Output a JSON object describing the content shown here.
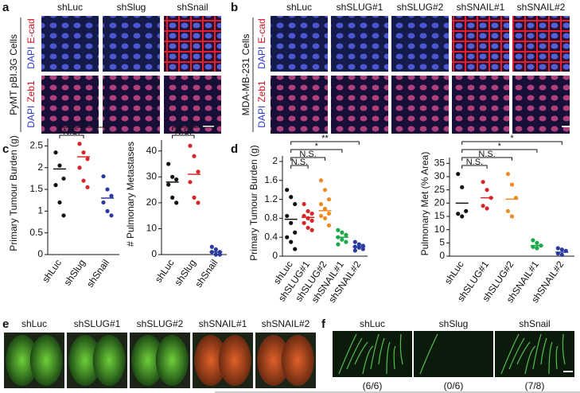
{
  "panel_labels": [
    "a",
    "b",
    "c",
    "d",
    "e",
    "f"
  ],
  "panel_a": {
    "columns": [
      "shLuc",
      "shSlug",
      "shSnail"
    ],
    "cell_line": "PyMT pBI.3G Cells",
    "rows": [
      {
        "stain": "DAPI",
        "marker": "E-cad"
      },
      {
        "stain": "DAPI",
        "marker": "Zeb1"
      }
    ]
  },
  "panel_b": {
    "columns": [
      "shLuc",
      "shSLUG#1",
      "shSLUG#2",
      "shSNAIL#1",
      "shSNAIL#2"
    ],
    "cell_line": "MDA-MB-231 Cells",
    "rows": [
      {
        "stain": "DAPI",
        "marker": "E-cad"
      },
      {
        "stain": "DAPI",
        "marker": "Zeb1"
      }
    ]
  },
  "chart_data": [
    {
      "type": "dot",
      "ylabel": "Primary Tumour Burden (g)",
      "categories": [
        "shLuc",
        "shSlug",
        "shSnail"
      ],
      "colors": [
        "#111111",
        "#d62728",
        "#2a3aa0"
      ],
      "values": [
        [
          2.35,
          2.05,
          1.75,
          1.6,
          1.2,
          0.9
        ],
        [
          2.55,
          2.35,
          2.2,
          2.0,
          1.7,
          1.55
        ],
        [
          1.8,
          1.5,
          1.35,
          1.2,
          1.0,
          0.9
        ]
      ],
      "means": [
        1.97,
        2.25,
        1.3
      ],
      "ylim": [
        0,
        2.6
      ],
      "yticks": [
        0,
        0.5,
        1,
        1.5,
        2,
        2.5
      ],
      "annotations": [
        "N.S.",
        "*"
      ]
    },
    {
      "type": "dot",
      "ylabel": "# Pulmonary Metastases",
      "categories": [
        "shLuc",
        "shSlug",
        "shSnail"
      ],
      "colors": [
        "#111111",
        "#d62728",
        "#2a3aa0"
      ],
      "values": [
        [
          35,
          30,
          29,
          27,
          22,
          20
        ],
        [
          42,
          38,
          32,
          28,
          22,
          20
        ],
        [
          3,
          2,
          1,
          1,
          0,
          0
        ]
      ],
      "means": [
        28,
        31,
        1
      ],
      "ylim": [
        0,
        43
      ],
      "yticks": [
        0,
        10,
        20,
        30,
        40
      ],
      "annotations": [
        "N.S.",
        "**"
      ]
    },
    {
      "type": "dot",
      "ylabel": "Primary Tumour Burden (g)",
      "categories": [
        "shLuc",
        "shSLUG#1",
        "shSLUG#2",
        "shSNAIL#1",
        "shSNAIL#2"
      ],
      "colors": [
        "#111111",
        "#d62728",
        "#f08a24",
        "#1aa84a",
        "#2a3aa0"
      ],
      "values": [
        [
          1.4,
          1.25,
          1.1,
          0.85,
          0.7,
          0.5,
          0.4,
          0.3,
          0.15
        ],
        [
          1.1,
          0.95,
          0.9,
          0.85,
          0.8,
          0.75,
          0.7,
          0.6,
          0.55
        ],
        [
          1.6,
          1.4,
          1.2,
          1.1,
          1.0,
          0.9,
          0.85,
          0.8,
          0.65
        ],
        [
          0.55,
          0.5,
          0.45,
          0.4,
          0.35,
          0.3,
          0.25
        ],
        [
          0.3,
          0.25,
          0.22,
          0.2,
          0.18,
          0.15,
          0.12
        ]
      ],
      "means": [
        0.78,
        0.82,
        0.96,
        0.4,
        0.2
      ],
      "ylim": [
        0,
        2.05
      ],
      "yticks": [
        0,
        0.4,
        0.8,
        1.2,
        1.6,
        2
      ],
      "annotations": [
        "N.S.",
        "N.S.",
        "*",
        "**"
      ]
    },
    {
      "type": "dot",
      "ylabel": "Pulmonary Met (% Area)",
      "categories": [
        "shLuc",
        "shSLUG#1",
        "shSLUG#2",
        "shSNAIL#1",
        "shSNAIL#2"
      ],
      "colors": [
        "#111111",
        "#d62728",
        "#f08a24",
        "#1aa84a",
        "#2a3aa0"
      ],
      "values": [
        [
          31,
          26,
          17,
          16,
          15
        ],
        [
          28,
          25,
          22,
          19,
          18
        ],
        [
          31,
          27,
          22,
          17,
          15
        ],
        [
          6,
          5,
          4,
          3.5,
          3
        ],
        [
          3,
          2.5,
          2,
          1,
          0.5
        ]
      ],
      "means": [
        20,
        22,
        21.5,
        4,
        1.5
      ],
      "ylim": [
        0,
        36
      ],
      "yticks": [
        0,
        5,
        10,
        15,
        20,
        25,
        30,
        35
      ],
      "annotations": [
        "N.S.",
        "N.S.",
        "*",
        "*"
      ]
    }
  ],
  "panel_e": {
    "columns": [
      "shLuc",
      "shSLUG#1",
      "shSLUG#2",
      "shSNAIL#1",
      "shSNAIL#2"
    ]
  },
  "panel_f": {
    "columns": [
      "shLuc",
      "shSlug",
      "shSnail"
    ],
    "ratios": [
      "(6/6)",
      "(0/6)",
      "(7/8)"
    ]
  }
}
